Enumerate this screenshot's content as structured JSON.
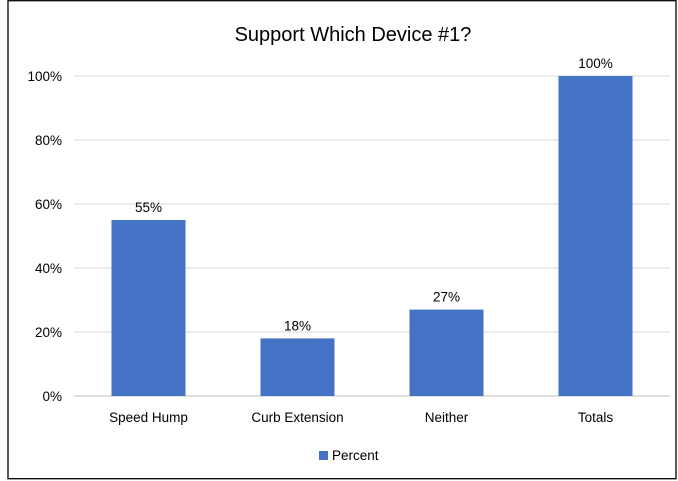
{
  "chart_data": {
    "type": "bar",
    "title": "Support Which Device #1?",
    "categories": [
      "Speed Hump",
      "Curb Extension",
      "Neither",
      "Totals"
    ],
    "series": [
      {
        "name": "Percent",
        "values": [
          55,
          18,
          27,
          100
        ],
        "color": "#4472c4"
      }
    ],
    "data_labels": [
      "55%",
      "18%",
      "27%",
      "100%"
    ],
    "ylim": [
      0,
      100
    ],
    "y_ticks": [
      0,
      20,
      40,
      60,
      80,
      100
    ],
    "y_tick_labels": [
      "0%",
      "20%",
      "40%",
      "60%",
      "80%",
      "100%"
    ],
    "grid": true,
    "legend_position": "bottom"
  }
}
